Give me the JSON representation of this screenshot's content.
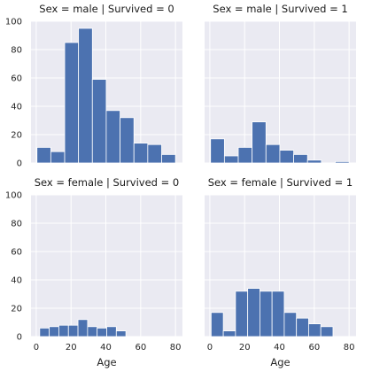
{
  "chart_data": {
    "type": "bar",
    "layout": "facet-grid 2x2",
    "shared_axes": true,
    "xlim": [
      -3,
      84
    ],
    "ylim": [
      0,
      100
    ],
    "xticks": [
      0,
      20,
      40,
      60,
      80
    ],
    "yticks": [
      0,
      20,
      40,
      60,
      80,
      100
    ],
    "xlabel": "Age",
    "ylabel": "",
    "grid": true,
    "bar_color": "#4c72b0",
    "background": "#eaeaf2",
    "panels": [
      {
        "title": "Sex = male | Survived = 0",
        "bins": [
          [
            0.42,
            8.38
          ],
          [
            8.38,
            16.34
          ],
          [
            16.34,
            24.29
          ],
          [
            24.29,
            32.25
          ],
          [
            32.25,
            40.21
          ],
          [
            40.21,
            48.17
          ],
          [
            48.17,
            56.13
          ],
          [
            56.13,
            64.08
          ],
          [
            64.08,
            72.04
          ],
          [
            72.04,
            80.0
          ]
        ],
        "values": [
          11,
          8,
          85,
          95,
          59,
          37,
          32,
          14,
          13,
          6
        ]
      },
      {
        "title": "Sex = male | Survived = 1",
        "bins": [
          [
            0.42,
            8.38
          ],
          [
            8.38,
            16.34
          ],
          [
            16.34,
            24.29
          ],
          [
            24.29,
            32.25
          ],
          [
            32.25,
            40.21
          ],
          [
            40.21,
            48.17
          ],
          [
            48.17,
            56.13
          ],
          [
            56.13,
            64.08
          ],
          [
            64.08,
            72.04
          ],
          [
            72.04,
            80.0
          ]
        ],
        "values": [
          17,
          5,
          11,
          29,
          13,
          9,
          6,
          2,
          0,
          1
        ]
      },
      {
        "title": "Sex = female | Survived = 0",
        "bins": [
          [
            2,
            7.5
          ],
          [
            7.5,
            13
          ],
          [
            13,
            18.5
          ],
          [
            18.5,
            24
          ],
          [
            24,
            29.5
          ],
          [
            29.5,
            35
          ],
          [
            35,
            40.5
          ],
          [
            40.5,
            46
          ],
          [
            46,
            51.5
          ],
          [
            51.5,
            57
          ],
          [
            57,
            62.5
          ],
          [
            62.5,
            68
          ],
          [
            68,
            73.5
          ],
          [
            73.5,
            79
          ]
        ],
        "values": [
          6,
          7,
          8,
          8,
          12,
          7,
          6,
          7,
          4,
          0,
          0,
          0,
          0,
          0
        ]
      },
      {
        "title": "Sex = female | Survived = 1",
        "bins": [
          [
            0.75,
            7.75
          ],
          [
            7.75,
            14.75
          ],
          [
            14.75,
            21.75
          ],
          [
            21.75,
            28.75
          ],
          [
            28.75,
            35.75
          ],
          [
            35.75,
            42.75
          ],
          [
            42.75,
            49.75
          ],
          [
            49.75,
            56.75
          ],
          [
            56.75,
            63.75
          ],
          [
            63.75,
            70.75
          ],
          [
            70.75,
            77.75
          ],
          [
            77.75,
            80
          ]
        ],
        "values": [
          17,
          4,
          32,
          34,
          32,
          32,
          17,
          13,
          9,
          7,
          0,
          0
        ]
      }
    ]
  }
}
